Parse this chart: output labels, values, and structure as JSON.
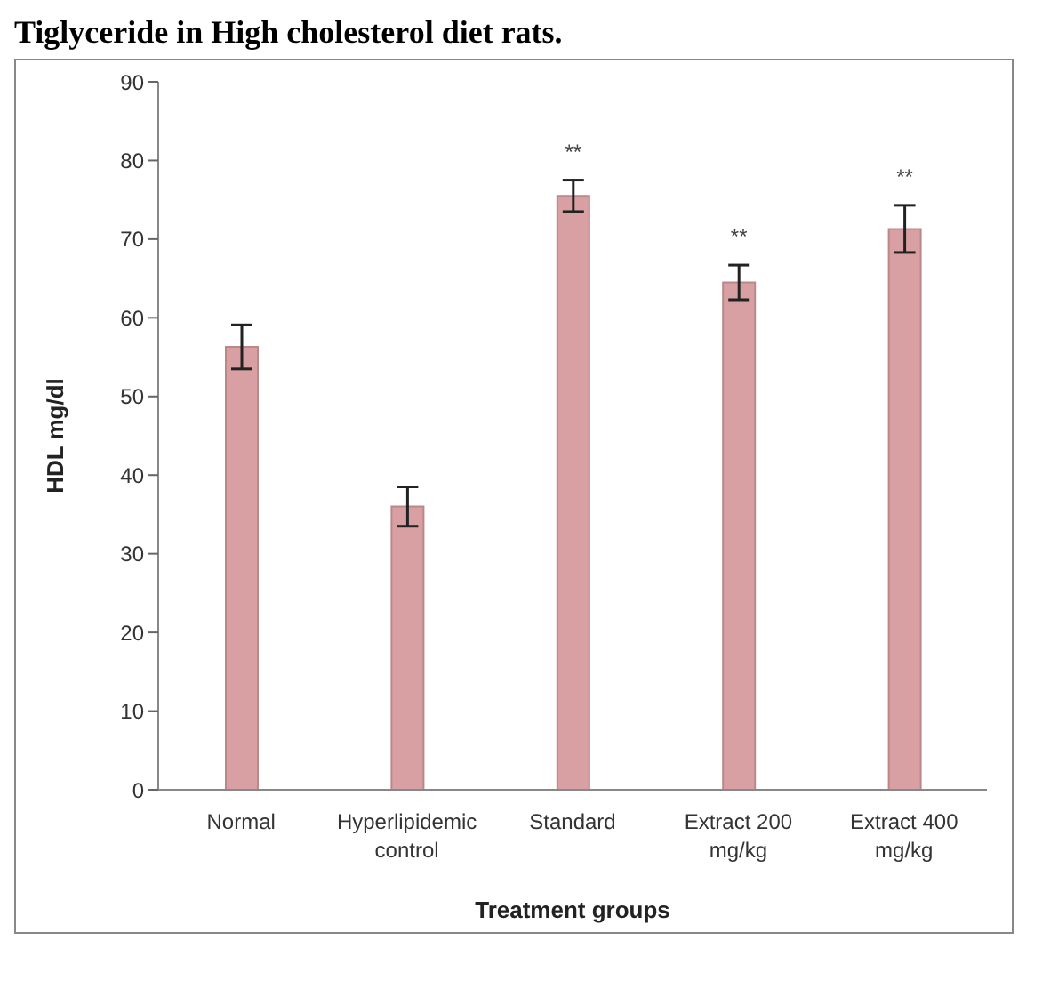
{
  "chart_data": {
    "type": "bar",
    "title": "Tiglyceride in High cholesterol diet rats.",
    "xlabel": "Treatment groups",
    "ylabel": "HDL mg/dl",
    "categories": [
      "Normal",
      "Hyperlipidemic control",
      "Standard",
      "Extract 200 mg/kg",
      "Extract 400 mg/kg"
    ],
    "values": [
      56.3,
      36,
      75.5,
      64.5,
      71.3
    ],
    "errors": [
      2.8,
      2.5,
      2,
      2.2,
      3
    ],
    "color": "#d9a0a3",
    "ylim": [
      0,
      90
    ],
    "yticks": [
      0,
      10,
      20,
      30,
      40,
      50,
      60,
      70,
      80,
      90
    ],
    "grid": false,
    "value_labels": [
      null,
      null,
      "**",
      "**",
      "**"
    ]
  }
}
